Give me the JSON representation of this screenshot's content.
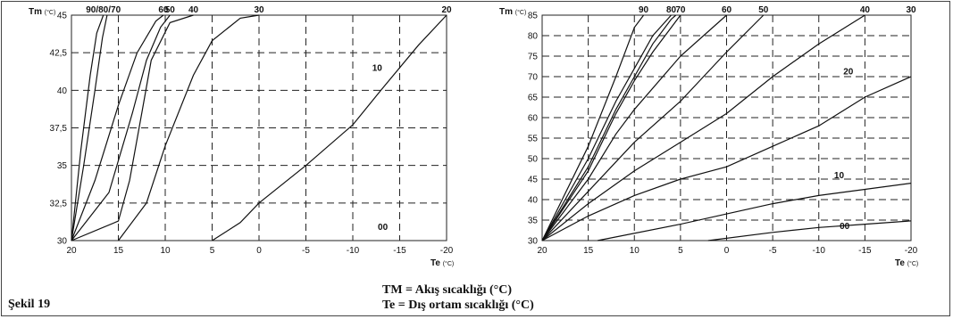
{
  "figure_label": "Şekil 19",
  "legend": {
    "tm": "TM = Akış sıcaklığı (°C)",
    "te": "Te   = Dış ortam sıcaklığı (°C)"
  },
  "chart_data": [
    {
      "type": "line",
      "ylabel": "Tm",
      "ylabel_unit": "(°C)",
      "xlabel": "Te",
      "xlabel_unit": "(°C)",
      "xlim": [
        20,
        -20
      ],
      "ylim": [
        30,
        45
      ],
      "x_ticks": [
        20,
        15,
        10,
        5,
        0,
        -5,
        -10,
        -15,
        -20
      ],
      "x_tick_labels": [
        "20",
        "15",
        "10",
        "5",
        "0",
        "-5",
        "-10",
        "-15",
        "-20"
      ],
      "y_ticks": [
        30,
        32.5,
        35,
        37.5,
        40,
        42.5,
        45
      ],
      "y_tick_labels": [
        "30",
        "32,5",
        "35",
        "37,5",
        "40",
        "42,5",
        "45"
      ],
      "grid": true,
      "series": [
        {
          "name": "90/80/70",
          "label_pos": "top",
          "points": [
            [
              20,
              30
            ],
            [
              19,
              36
            ],
            [
              18,
              41
            ],
            [
              17.3,
              43.8
            ],
            [
              16.6,
              45
            ]
          ]
        },
        {
          "name": "",
          "points": [
            [
              20,
              30
            ],
            [
              18.7,
              35
            ],
            [
              17.5,
              40
            ],
            [
              16.7,
              43.5
            ],
            [
              16.2,
              45
            ]
          ]
        },
        {
          "name": "60",
          "label_pos": "top",
          "points": [
            [
              20,
              30
            ],
            [
              17.5,
              34
            ],
            [
              15,
              39
            ],
            [
              13,
              42.5
            ],
            [
              11,
              44.6
            ],
            [
              10.2,
              45
            ]
          ]
        },
        {
          "name": "50",
          "label_pos": "top",
          "points": [
            [
              20,
              30
            ],
            [
              16,
              33.2
            ],
            [
              13.5,
              38.5
            ],
            [
              12,
              42
            ],
            [
              10.5,
              44.2
            ],
            [
              9.5,
              45
            ]
          ]
        },
        {
          "name": "40",
          "label_pos": "top",
          "points": [
            [
              20,
              30
            ],
            [
              15,
              31.3
            ],
            [
              13.8,
              34
            ],
            [
              12.5,
              38.5
            ],
            [
              11.5,
              42
            ],
            [
              9.5,
              44.5
            ],
            [
              7,
              45
            ]
          ]
        },
        {
          "name": "30",
          "label_pos": "top",
          "points": [
            [
              15,
              30
            ],
            [
              12,
              32.5
            ],
            [
              10,
              36.3
            ],
            [
              7,
              41
            ],
            [
              5,
              43.3
            ],
            [
              2,
              44.8
            ],
            [
              0,
              45
            ]
          ]
        },
        {
          "name": "20",
          "label_pos": "top",
          "points": [
            [
              5,
              30
            ],
            [
              2,
              31.2
            ],
            [
              0,
              32.5
            ],
            [
              -5,
              35
            ],
            [
              -10,
              37.7
            ],
            [
              -13,
              40
            ],
            [
              -17,
              43
            ],
            [
              -20,
              45
            ]
          ]
        },
        {
          "name": "10",
          "label_pos": "inline",
          "label_at": [
            -12.6,
            41.3
          ],
          "points": []
        },
        {
          "name": "00",
          "label_pos": "inline",
          "label_at": [
            -13.2,
            30.7
          ],
          "points": []
        }
      ]
    },
    {
      "type": "line",
      "ylabel": "Tm",
      "ylabel_unit": "(°C)",
      "xlabel": "Te",
      "xlabel_unit": "(°C)",
      "xlim": [
        20,
        -20
      ],
      "ylim": [
        30,
        85
      ],
      "x_ticks": [
        20,
        15,
        10,
        5,
        0,
        -5,
        -10,
        -15,
        -20
      ],
      "x_tick_labels": [
        "20",
        "15",
        "10",
        "5",
        "0",
        "-5",
        "-10",
        "-15",
        "-20"
      ],
      "y_ticks": [
        30,
        35,
        40,
        45,
        50,
        55,
        60,
        65,
        70,
        75,
        80,
        85
      ],
      "y_tick_labels": [
        "30",
        "35",
        "40",
        "45",
        "50",
        "55",
        "60",
        "65",
        "70",
        "75",
        "80",
        "85"
      ],
      "grid": true,
      "series": [
        {
          "name": "90",
          "label_pos": "top",
          "points": [
            [
              20,
              30
            ],
            [
              15,
              53
            ],
            [
              12,
              70
            ],
            [
              10,
              82
            ],
            [
              9,
              85
            ]
          ]
        },
        {
          "name": "80",
          "label_pos": "top",
          "points": [
            [
              20,
              30
            ],
            [
              15,
              50
            ],
            [
              12,
              64
            ],
            [
              10,
              72
            ],
            [
              8,
              80
            ],
            [
              6,
              85
            ]
          ]
        },
        {
          "name": "",
          "points": [
            [
              20,
              30
            ],
            [
              15,
              48
            ],
            [
              12,
              62
            ],
            [
              10,
              70
            ],
            [
              8,
              78
            ],
            [
              6,
              84
            ],
            [
              5.5,
              85
            ]
          ]
        },
        {
          "name": "70",
          "label_pos": "top",
          "points": [
            [
              20,
              30
            ],
            [
              15,
              47
            ],
            [
              12,
              61
            ],
            [
              10,
              69
            ],
            [
              8,
              76
            ],
            [
              5,
              85
            ]
          ]
        },
        {
          "name": "60",
          "label_pos": "top",
          "points": [
            [
              20,
              30
            ],
            [
              15,
              45
            ],
            [
              12,
              56
            ],
            [
              10,
              62
            ],
            [
              5,
              75
            ],
            [
              0,
              85
            ]
          ]
        },
        {
          "name": "50",
          "label_pos": "top",
          "points": [
            [
              20,
              30
            ],
            [
              15,
              42
            ],
            [
              10,
              54
            ],
            [
              5,
              64
            ],
            [
              0,
              76
            ],
            [
              -4,
              85
            ]
          ]
        },
        {
          "name": "40",
          "label_pos": "top",
          "points": [
            [
              20,
              30
            ],
            [
              15,
              39
            ],
            [
              10,
              47
            ],
            [
              5,
              54
            ],
            [
              0,
              61
            ],
            [
              -5,
              70
            ],
            [
              -10,
              78
            ],
            [
              -15,
              85
            ]
          ]
        },
        {
          "name": "30",
          "label_pos": "top",
          "points": [
            [
              20,
              30
            ],
            [
              15,
              36
            ],
            [
              10,
              41
            ],
            [
              5,
              45
            ],
            [
              0,
              48
            ],
            [
              -5,
              53
            ],
            [
              -10,
              58
            ],
            [
              -15,
              65
            ],
            [
              -20,
              70
            ]
          ]
        },
        {
          "name": "20",
          "label_pos": "inline",
          "label_at": [
            -13.2,
            70.5
          ],
          "points": [
            [
              14,
              30
            ],
            [
              5,
              34
            ],
            [
              0,
              36.5
            ],
            [
              -5,
              39
            ],
            [
              -10,
              41
            ],
            [
              -15,
              42.5
            ],
            [
              -20,
              44
            ]
          ]
        },
        {
          "name": "10",
          "label_pos": "inline",
          "label_at": [
            -12.2,
            45.2
          ],
          "points": [
            [
              2,
              30
            ],
            [
              -5,
              32
            ],
            [
              -10,
              33.2
            ],
            [
              -15,
              34
            ],
            [
              -20,
              34.8
            ]
          ]
        },
        {
          "name": "00",
          "label_pos": "inline",
          "label_at": [
            -12.8,
            32.8
          ],
          "points": []
        }
      ]
    }
  ]
}
